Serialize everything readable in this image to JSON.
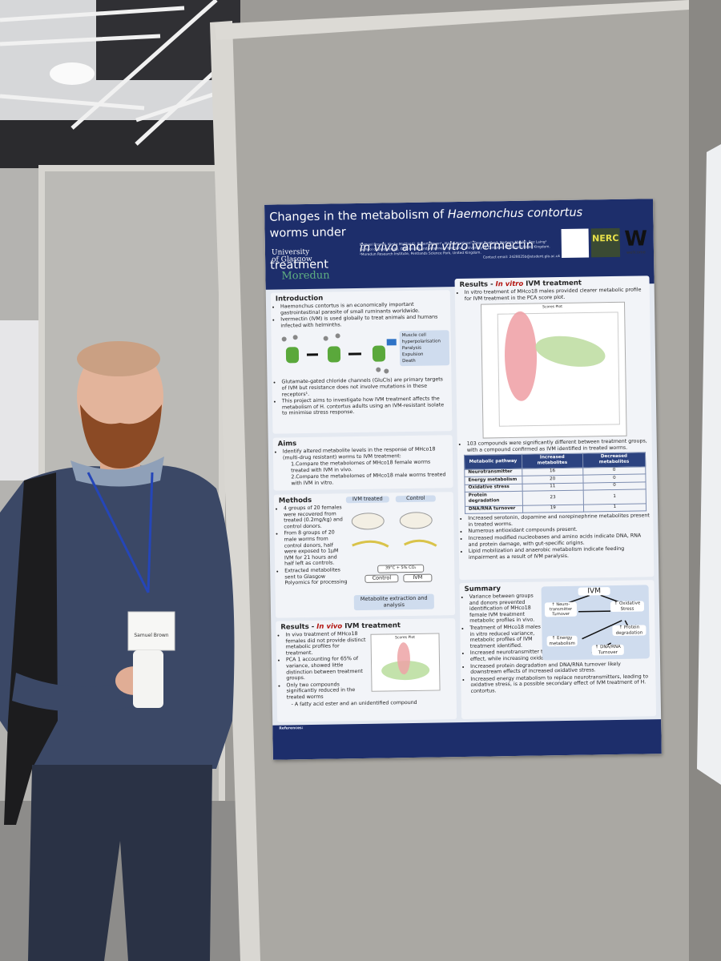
{
  "header": {
    "title_1": "Changes in the metabolism of",
    "title_species": "Haemonchus contortus",
    "title_2": "worms under",
    "title_in_vivo": "in vivo",
    "title_and": "and",
    "title_in_vitro": "in vitro",
    "title_3": "ivermectin treatment",
    "authors": "Samuel Brown¹, Kirsty Maitland¹, Robert Brown¹, Alison Morrison², Dave Bartley², Barbara Mable¹, Roz Laing¹",
    "affiliation_1": "¹School of Biodiversity, One Health and Veterinary Medicine, University of Glasgow, Glasgow, United Kingdom.",
    "affiliation_2": "²Moredun Research Institute, Pentlands Science Park, United Kingdom.",
    "contact": "Contact email: 2428025b@student.gla.ac.uk"
  },
  "logos": {
    "glasgow_1": "University",
    "glasgow_2": "of Glasgow",
    "moredun": "Moredun",
    "nerc": "NERC",
    "wellcome": "W",
    "wellcome_name": "wellcome"
  },
  "introduction": {
    "heading": "Introduction",
    "bullets_a": [
      "Haemonchus contortus is an economically important gastrointestinal parasite of small ruminants worldwide.",
      "Ivermectin (IVM) is used globally to treat animals and humans infected with helminths."
    ],
    "diagram_labels": [
      "Muscle cell hyperpolarisation",
      "Paralysis",
      "Expulsion",
      "Death"
    ],
    "bullets_b": [
      "Glutamate-gated chloride channels (GluCls) are primary targets of IVM but resistance does not involve mutations in these receptors¹.",
      "This project aims to investigate how IVM treatment affects the metabolism of H. contortus adults using an IVM-resistant isolate to minimise stress response."
    ]
  },
  "aims": {
    "heading": "Aims",
    "bullets": [
      "Identify altered metabolite levels in the response of MHco18 (multi-drug resistant) worms to IVM treatment:"
    ],
    "sub": [
      "1.Compare the metabolomes of MHco18 female worms treated with IVM in vivo.",
      "2.Compare the metabolomes of MHco18 male worms treated with IVM in vitro."
    ]
  },
  "methods": {
    "heading": "Methods",
    "bullets": [
      "4 groups of 20 females were recovered from treated (0.2mg/kg) and control donors.",
      "From 8 groups of 20 male worms from control donors, half were exposed to 1µM IVM for 21 hours and half left as controls.",
      "Extracted metabolites sent to Glasgow Polyomics for processing"
    ],
    "ivm_treated": "IVM treated",
    "control": "Control",
    "incubation": "39°C + 5% CO₂",
    "control_2": "Control",
    "ivm": "IVM",
    "extraction": "Metabolite extraction and analysis"
  },
  "results_in_vivo": {
    "heading_1": "Results -",
    "heading_2": "In vivo",
    "heading_3": "IVM treatment",
    "bullets": [
      "In vivo treatment of MHco18 females did not provide distinct metabolic profiles for treatment.",
      "PCA 1 accounting for 65% of variance, showed little distinction between treatment groups.",
      "Only two compounds significantly reduced in the treated worms"
    ],
    "sub_bullet": "A fatty acid ester and an unidentified compound",
    "plot_title": "Scores Plot"
  },
  "results_in_vitro": {
    "heading_1": "Results -",
    "heading_2": "In vitro",
    "heading_3": "IVM treatment",
    "bullet_1": "In vitro treatment of MHco18 males provided clearer metabolic profile for IVM treatment in the PCA score plot.",
    "plot_title": "Scores Plot",
    "bullet_2": "103 compounds were significantly different between treatment groups, with a compound confirmed as IVM identified in treated worms.",
    "table": {
      "header": [
        "Metabolic pathway",
        "Increased metabolites",
        "Decreased metabolites"
      ],
      "rows": [
        [
          "Neurotransmitter",
          16,
          0
        ],
        [
          "Energy metabolism",
          20,
          0
        ],
        [
          "Oxidative stress",
          11,
          0
        ],
        [
          "Protein degradation",
          23,
          1
        ],
        [
          "DNA/RNA turnover",
          19,
          1
        ]
      ]
    },
    "bullets": [
      "Increased serotonin, dopamine and norepinephrine metabolites present in treated worms.",
      "Numerous antioxidant compounds present.",
      "Increased modified nucleobases and amino acids indicate DNA, RNA and protein damage, with gut-specific origins.",
      "Lipid mobilization and anaerobic metabolism indicate feeding impairment as a result of IVM paralysis."
    ]
  },
  "summary": {
    "heading": "Summary",
    "bullets_a": [
      "Variance between groups and donors prevented identification of MHco18 female IVM treatment metabolic profiles in vivo.",
      "Treatment of MHco18 males in vitro reduced variance, metabolic profiles of IVM treatment identified."
    ],
    "bullets_b": [
      "Increased neurotransmitter turnover consistent with primary IVM effect, while increasing oxidative stress².",
      "Increased protein degradation and DNA/RNA turnover likely downstream effects of increased oxidative stress.",
      "Increased energy metabolism to replace neurotransmitters, leading to oxidative stress, is a possible secondary effect of IVM treatment of H. contortus."
    ],
    "ivm": "IVM",
    "neuro": "↑ Neuro-transmitter Turnover",
    "oxidative": "↑ Oxidative Stress",
    "protein": "↑ Protein degradation",
    "energy": "↑ Energy metabolism",
    "dna": "↑ DNA/RNA Turnover"
  },
  "references": {
    "heading": "References:"
  },
  "badge": {
    "name": "Samuel Brown"
  }
}
